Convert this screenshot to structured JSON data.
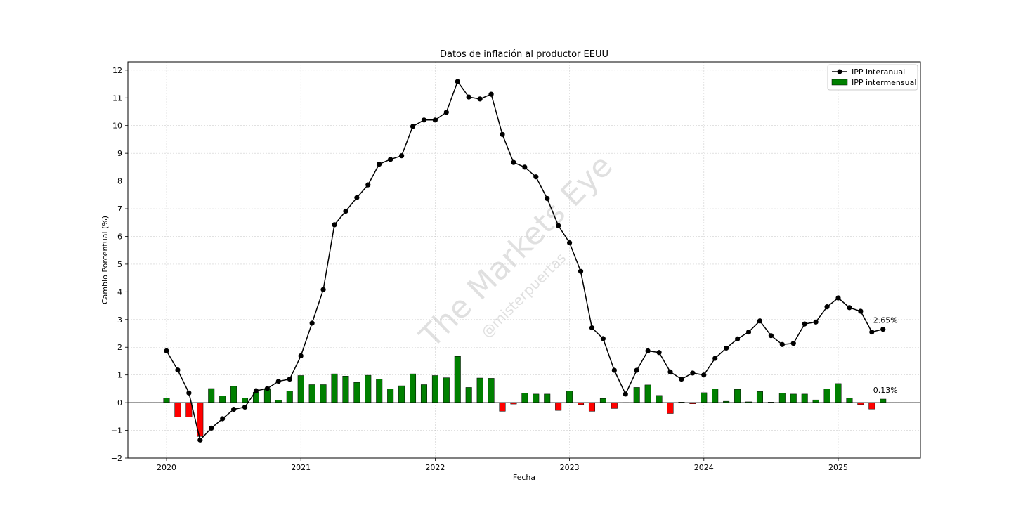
{
  "chart_data": {
    "type": "line+bar",
    "title": "Datos de inflación al productor EEUU",
    "xlabel": "Fecha",
    "ylabel": "Cambio Porcentual (%)",
    "ylim": [
      -2,
      12.3
    ],
    "yticks": [
      -2,
      -1,
      0,
      1,
      2,
      3,
      4,
      5,
      6,
      7,
      8,
      9,
      10,
      11,
      12
    ],
    "xticks": [
      "2020",
      "2021",
      "2022",
      "2023",
      "2024",
      "2025"
    ],
    "grid": true,
    "legend_position": "top-right",
    "x_start": "2020-01",
    "series": [
      {
        "name": "IPP interanual",
        "kind": "line",
        "color": "#000000",
        "values": [
          1.87,
          1.18,
          0.35,
          -1.35,
          -0.92,
          -0.58,
          -0.24,
          -0.16,
          0.43,
          0.51,
          0.77,
          0.85,
          1.69,
          2.87,
          4.08,
          6.42,
          6.91,
          7.4,
          7.86,
          8.61,
          8.78,
          8.91,
          9.97,
          10.2,
          10.2,
          10.48,
          11.59,
          11.03,
          10.96,
          11.13,
          9.68,
          8.67,
          8.5,
          8.15,
          7.37,
          6.39,
          5.77,
          4.74,
          2.7,
          2.31,
          1.17,
          0.31,
          1.17,
          1.87,
          1.81,
          1.11,
          0.85,
          1.07,
          1.0,
          1.6,
          1.97,
          2.3,
          2.55,
          2.95,
          2.42,
          2.1,
          2.14,
          2.84,
          2.91,
          3.46,
          3.78,
          3.43,
          3.3,
          2.55,
          2.65
        ]
      },
      {
        "name": "IPP intermensual",
        "kind": "bar",
        "color_positive": "#008000",
        "color_negative": "#ff0000",
        "values": [
          0.17,
          -0.52,
          -0.52,
          -1.22,
          0.51,
          0.24,
          0.59,
          0.17,
          0.38,
          0.51,
          0.09,
          0.42,
          0.98,
          0.65,
          0.65,
          1.04,
          0.96,
          0.73,
          0.99,
          0.85,
          0.5,
          0.61,
          1.04,
          0.65,
          0.98,
          0.9,
          1.67,
          0.55,
          0.89,
          0.88,
          -0.31,
          -0.05,
          0.34,
          0.31,
          0.31,
          -0.28,
          0.42,
          -0.07,
          -0.31,
          0.15,
          -0.21,
          0.0,
          0.55,
          0.64,
          0.26,
          -0.39,
          0.02,
          -0.04,
          0.36,
          0.49,
          0.05,
          0.48,
          0.03,
          0.4,
          0.02,
          0.34,
          0.31,
          0.31,
          0.1,
          0.5,
          0.69,
          0.16,
          -0.07,
          -0.23,
          0.13
        ]
      }
    ],
    "annotations": [
      {
        "text": "2.65%",
        "series": 0,
        "index": 64
      },
      {
        "text": "0.13%",
        "series": 1,
        "index": 64
      }
    ],
    "watermark": {
      "main": "The Markets Eye",
      "sub": "@misterpuertas"
    }
  }
}
